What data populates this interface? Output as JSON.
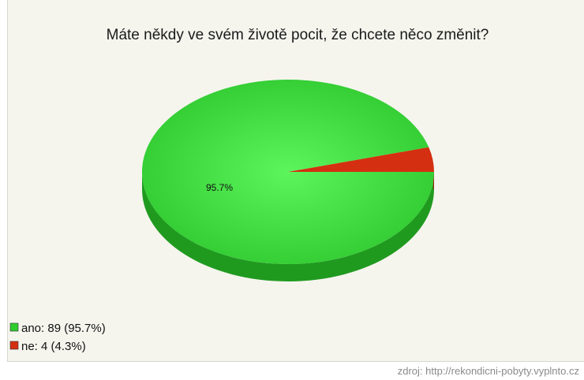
{
  "chart_data": {
    "type": "pie",
    "title": "Máte někdy ve svém životě pocit, že chcete něco změnit?",
    "slices": [
      {
        "label": "ano",
        "value": 89,
        "percent": 95.7,
        "color": "#2ecc2e",
        "side_color": "#1f9a1f",
        "legend_text": "ano: 89 (95.7%)",
        "slice_label": "95.7%"
      },
      {
        "label": "ne",
        "value": 4,
        "percent": 4.3,
        "color": "#d42f10",
        "side_color": "#9e2108",
        "legend_text": "ne: 4 (4.3%)",
        "slice_label": ""
      }
    ],
    "legend_placement": "bottom-left",
    "three_d": true
  },
  "source": "zdroj: http://rekondicni-pobyty.vyplnto.cz"
}
